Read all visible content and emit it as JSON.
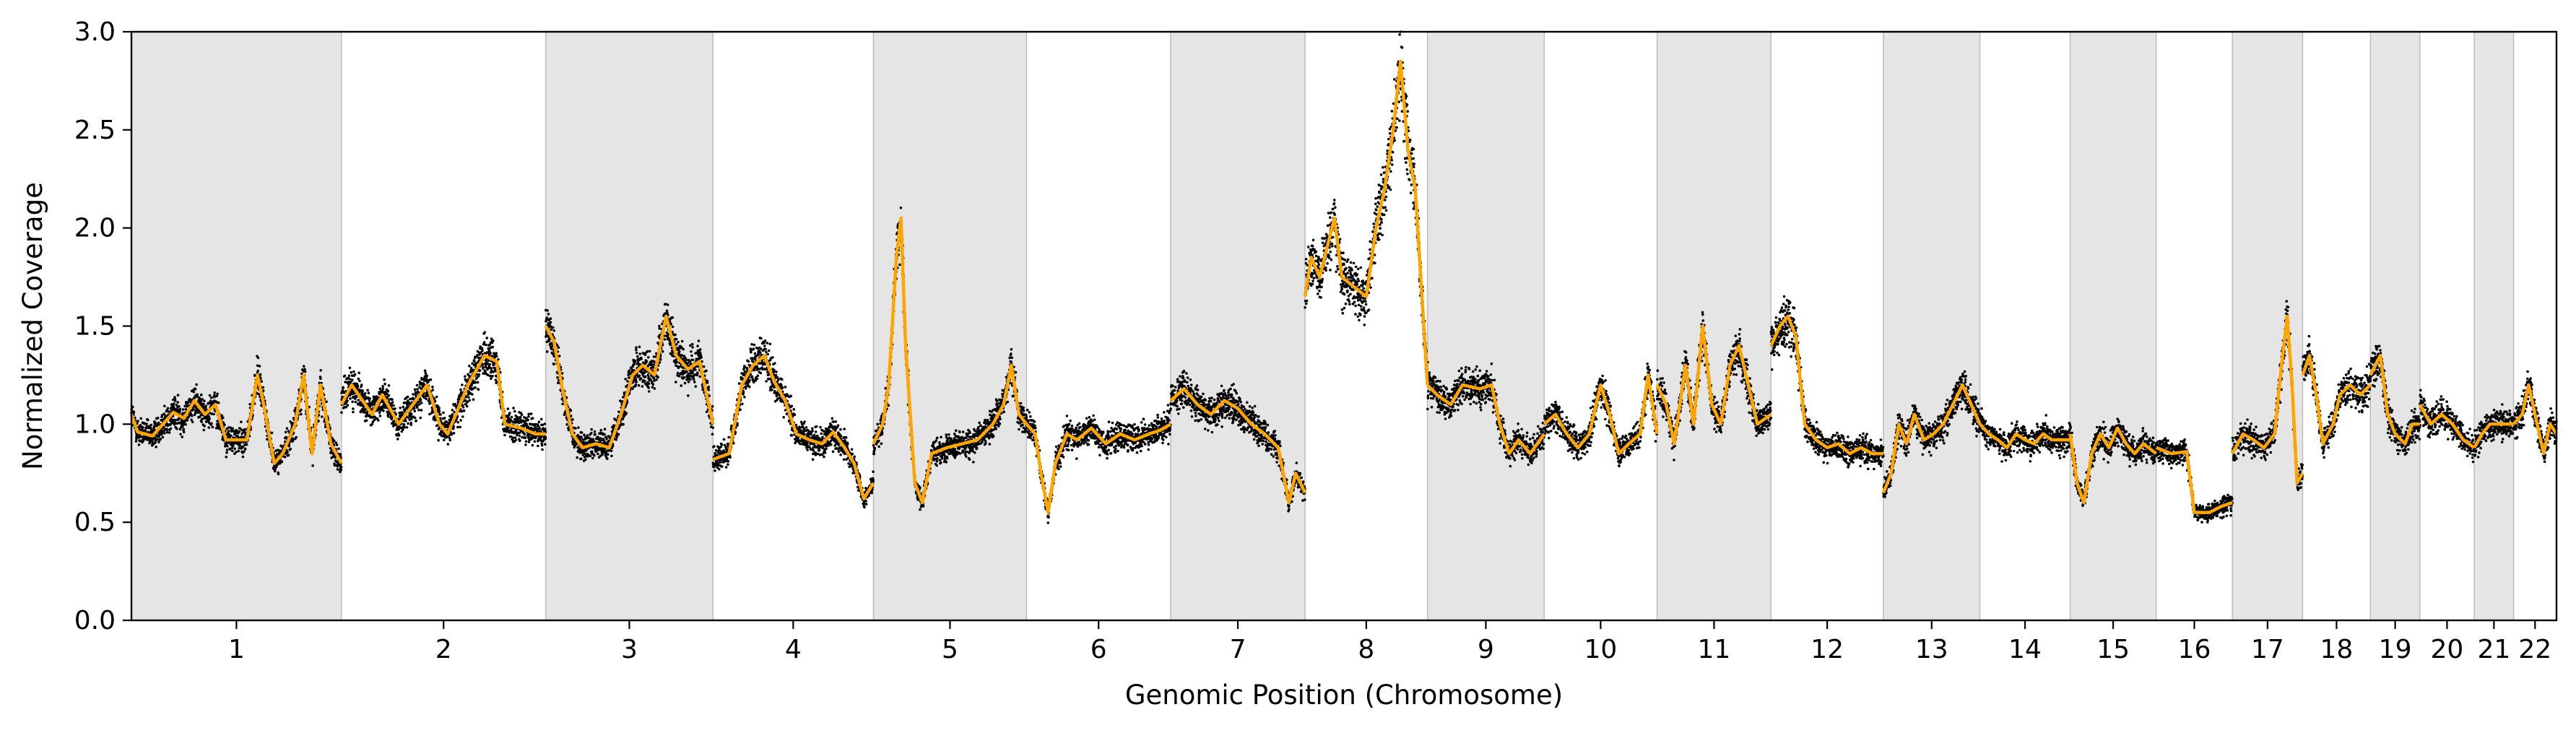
{
  "chart_data": {
    "type": "scatter",
    "title": "",
    "xlabel": "Genomic Position (Chromosome)",
    "ylabel": "Normalized Coverage",
    "ylim": [
      0.0,
      3.0
    ],
    "yticks": [
      "0.0",
      "0.5",
      "1.0",
      "1.5",
      "2.0",
      "2.5",
      "3.0"
    ],
    "grid": false,
    "legend": "none",
    "colors": {
      "points": "#000000",
      "segments": "#FFA500",
      "band": "#E5E5E5",
      "band_edge": "#BDBDBD"
    },
    "chromosomes": [
      {
        "label": "1",
        "length": 248.956,
        "shaded": true
      },
      {
        "label": "2",
        "length": 242.193,
        "shaded": false
      },
      {
        "label": "3",
        "length": 198.295,
        "shaded": true
      },
      {
        "label": "4",
        "length": 190.214,
        "shaded": false
      },
      {
        "label": "5",
        "length": 181.538,
        "shaded": true
      },
      {
        "label": "6",
        "length": 170.805,
        "shaded": false
      },
      {
        "label": "7",
        "length": 159.345,
        "shaded": true
      },
      {
        "label": "8",
        "length": 145.138,
        "shaded": false
      },
      {
        "label": "9",
        "length": 138.394,
        "shaded": true
      },
      {
        "label": "10",
        "length": 133.797,
        "shaded": false
      },
      {
        "label": "11",
        "length": 135.086,
        "shaded": true
      },
      {
        "label": "12",
        "length": 133.275,
        "shaded": false
      },
      {
        "label": "13",
        "length": 114.364,
        "shaded": true
      },
      {
        "label": "14",
        "length": 107.043,
        "shaded": false
      },
      {
        "label": "15",
        "length": 101.991,
        "shaded": true
      },
      {
        "label": "16",
        "length": 90.338,
        "shaded": false
      },
      {
        "label": "17",
        "length": 83.257,
        "shaded": true
      },
      {
        "label": "18",
        "length": 80.373,
        "shaded": false
      },
      {
        "label": "19",
        "length": 58.617,
        "shaded": true
      },
      {
        "label": "20",
        "length": 64.444,
        "shaded": false
      },
      {
        "label": "21",
        "length": 46.71,
        "shaded": true
      },
      {
        "label": "22",
        "length": 50.818,
        "shaded": false
      }
    ],
    "segments": [
      {
        "chrom": "1",
        "profile": [
          [
            0.0,
            1.05
          ],
          [
            0.03,
            0.96
          ],
          [
            0.1,
            0.94
          ],
          [
            0.15,
            1.0
          ],
          [
            0.2,
            1.06
          ],
          [
            0.25,
            1.03
          ],
          [
            0.3,
            1.12
          ],
          [
            0.35,
            1.05
          ],
          [
            0.4,
            1.1
          ],
          [
            0.45,
            0.92
          ],
          [
            0.55,
            0.92
          ],
          [
            0.6,
            1.25
          ],
          [
            0.63,
            1.1
          ],
          [
            0.68,
            0.8
          ],
          [
            0.72,
            0.85
          ],
          [
            0.78,
            1.0
          ],
          [
            0.82,
            1.25
          ],
          [
            0.86,
            0.85
          ],
          [
            0.9,
            1.2
          ],
          [
            0.95,
            0.9
          ],
          [
            1.0,
            0.8
          ]
        ]
      },
      {
        "chrom": "2",
        "profile": [
          [
            0.0,
            1.1
          ],
          [
            0.05,
            1.2
          ],
          [
            0.15,
            1.05
          ],
          [
            0.2,
            1.15
          ],
          [
            0.28,
            1.0
          ],
          [
            0.35,
            1.1
          ],
          [
            0.42,
            1.2
          ],
          [
            0.48,
            1.0
          ],
          [
            0.52,
            0.95
          ],
          [
            0.58,
            1.1
          ],
          [
            0.62,
            1.2
          ],
          [
            0.7,
            1.35
          ],
          [
            0.76,
            1.32
          ],
          [
            0.8,
            1.0
          ],
          [
            0.88,
            0.98
          ],
          [
            0.95,
            0.95
          ],
          [
            1.0,
            0.95
          ]
        ]
      },
      {
        "chrom": "3",
        "profile": [
          [
            0.0,
            1.5
          ],
          [
            0.05,
            1.42
          ],
          [
            0.1,
            1.18
          ],
          [
            0.16,
            0.95
          ],
          [
            0.22,
            0.88
          ],
          [
            0.3,
            0.9
          ],
          [
            0.38,
            0.88
          ],
          [
            0.45,
            1.05
          ],
          [
            0.52,
            1.25
          ],
          [
            0.58,
            1.3
          ],
          [
            0.65,
            1.25
          ],
          [
            0.72,
            1.55
          ],
          [
            0.78,
            1.35
          ],
          [
            0.85,
            1.28
          ],
          [
            0.92,
            1.32
          ],
          [
            1.0,
            1.0
          ]
        ]
      },
      {
        "chrom": "4",
        "profile": [
          [
            0.0,
            0.82
          ],
          [
            0.1,
            0.85
          ],
          [
            0.18,
            1.2
          ],
          [
            0.25,
            1.3
          ],
          [
            0.32,
            1.35
          ],
          [
            0.38,
            1.22
          ],
          [
            0.45,
            1.12
          ],
          [
            0.52,
            0.95
          ],
          [
            0.6,
            0.92
          ],
          [
            0.68,
            0.9
          ],
          [
            0.75,
            0.96
          ],
          [
            0.82,
            0.88
          ],
          [
            0.88,
            0.8
          ],
          [
            0.94,
            0.62
          ],
          [
            1.0,
            0.7
          ]
        ]
      },
      {
        "chrom": "5",
        "profile": [
          [
            0.0,
            0.9
          ],
          [
            0.06,
            1.0
          ],
          [
            0.1,
            1.2
          ],
          [
            0.15,
            1.85
          ],
          [
            0.18,
            2.05
          ],
          [
            0.21,
            1.4
          ],
          [
            0.27,
            0.7
          ],
          [
            0.32,
            0.6
          ],
          [
            0.38,
            0.85
          ],
          [
            0.48,
            0.88
          ],
          [
            0.58,
            0.9
          ],
          [
            0.68,
            0.92
          ],
          [
            0.78,
            1.0
          ],
          [
            0.85,
            1.1
          ],
          [
            0.9,
            1.3
          ],
          [
            0.95,
            1.05
          ],
          [
            1.0,
            1.0
          ]
        ]
      },
      {
        "chrom": "6",
        "profile": [
          [
            0.0,
            1.0
          ],
          [
            0.06,
            0.95
          ],
          [
            0.1,
            0.75
          ],
          [
            0.15,
            0.55
          ],
          [
            0.2,
            0.8
          ],
          [
            0.28,
            0.95
          ],
          [
            0.35,
            0.92
          ],
          [
            0.45,
            0.98
          ],
          [
            0.55,
            0.9
          ],
          [
            0.65,
            0.95
          ],
          [
            0.75,
            0.92
          ],
          [
            0.85,
            0.95
          ],
          [
            0.93,
            0.97
          ],
          [
            1.0,
            1.0
          ]
        ]
      },
      {
        "chrom": "7",
        "profile": [
          [
            0.0,
            1.12
          ],
          [
            0.1,
            1.18
          ],
          [
            0.2,
            1.1
          ],
          [
            0.3,
            1.05
          ],
          [
            0.4,
            1.12
          ],
          [
            0.5,
            1.08
          ],
          [
            0.6,
            1.0
          ],
          [
            0.7,
            0.95
          ],
          [
            0.8,
            0.88
          ],
          [
            0.88,
            0.6
          ],
          [
            0.93,
            0.75
          ],
          [
            1.0,
            0.65
          ]
        ]
      },
      {
        "chrom": "8",
        "profile": [
          [
            0.0,
            1.65
          ],
          [
            0.05,
            1.85
          ],
          [
            0.12,
            1.75
          ],
          [
            0.18,
            1.9
          ],
          [
            0.24,
            2.05
          ],
          [
            0.3,
            1.75
          ],
          [
            0.4,
            1.7
          ],
          [
            0.5,
            1.65
          ],
          [
            0.58,
            2.0
          ],
          [
            0.65,
            2.2
          ],
          [
            0.72,
            2.5
          ],
          [
            0.78,
            2.85
          ],
          [
            0.84,
            2.4
          ],
          [
            0.9,
            2.2
          ],
          [
            1.0,
            1.2
          ]
        ]
      },
      {
        "chrom": "9",
        "profile": [
          [
            0.0,
            1.2
          ],
          [
            0.08,
            1.15
          ],
          [
            0.2,
            1.1
          ],
          [
            0.3,
            1.2
          ],
          [
            0.45,
            1.18
          ],
          [
            0.55,
            1.2
          ],
          [
            0.62,
            1.0
          ],
          [
            0.7,
            0.85
          ],
          [
            0.78,
            0.92
          ],
          [
            0.88,
            0.85
          ],
          [
            1.0,
            0.95
          ]
        ]
      },
      {
        "chrom": "10",
        "profile": [
          [
            0.0,
            1.0
          ],
          [
            0.1,
            1.05
          ],
          [
            0.2,
            0.95
          ],
          [
            0.3,
            0.88
          ],
          [
            0.4,
            0.95
          ],
          [
            0.5,
            1.2
          ],
          [
            0.58,
            1.05
          ],
          [
            0.66,
            0.85
          ],
          [
            0.75,
            0.9
          ],
          [
            0.85,
            0.95
          ],
          [
            0.92,
            1.25
          ],
          [
            1.0,
            0.95
          ]
        ]
      },
      {
        "chrom": "11",
        "profile": [
          [
            0.0,
            1.2
          ],
          [
            0.08,
            1.1
          ],
          [
            0.15,
            0.9
          ],
          [
            0.25,
            1.3
          ],
          [
            0.32,
            1.0
          ],
          [
            0.4,
            1.5
          ],
          [
            0.48,
            1.1
          ],
          [
            0.56,
            1.0
          ],
          [
            0.64,
            1.3
          ],
          [
            0.72,
            1.4
          ],
          [
            0.8,
            1.2
          ],
          [
            0.88,
            1.0
          ],
          [
            1.0,
            1.05
          ]
        ]
      },
      {
        "chrom": "12",
        "profile": [
          [
            0.0,
            1.4
          ],
          [
            0.08,
            1.5
          ],
          [
            0.15,
            1.55
          ],
          [
            0.22,
            1.45
          ],
          [
            0.3,
            1.0
          ],
          [
            0.4,
            0.92
          ],
          [
            0.5,
            0.88
          ],
          [
            0.6,
            0.9
          ],
          [
            0.7,
            0.85
          ],
          [
            0.8,
            0.88
          ],
          [
            0.9,
            0.85
          ],
          [
            1.0,
            0.85
          ]
        ]
      },
      {
        "chrom": "13",
        "profile": [
          [
            0.0,
            0.65
          ],
          [
            0.08,
            0.75
          ],
          [
            0.16,
            1.0
          ],
          [
            0.24,
            0.9
          ],
          [
            0.32,
            1.05
          ],
          [
            0.42,
            0.92
          ],
          [
            0.52,
            0.95
          ],
          [
            0.62,
            1.0
          ],
          [
            0.72,
            1.1
          ],
          [
            0.82,
            1.2
          ],
          [
            1.0,
            1.0
          ]
        ]
      },
      {
        "chrom": "14",
        "profile": [
          [
            0.0,
            1.0
          ],
          [
            0.1,
            0.95
          ],
          [
            0.2,
            0.92
          ],
          [
            0.3,
            0.88
          ],
          [
            0.4,
            0.95
          ],
          [
            0.5,
            0.92
          ],
          [
            0.6,
            0.9
          ],
          [
            0.7,
            0.95
          ],
          [
            0.8,
            0.92
          ],
          [
            1.0,
            0.92
          ]
        ]
      },
      {
        "chrom": "15",
        "profile": [
          [
            0.0,
            0.95
          ],
          [
            0.08,
            0.7
          ],
          [
            0.16,
            0.6
          ],
          [
            0.25,
            0.85
          ],
          [
            0.35,
            0.95
          ],
          [
            0.45,
            0.88
          ],
          [
            0.55,
            0.98
          ],
          [
            0.65,
            0.9
          ],
          [
            0.75,
            0.85
          ],
          [
            0.85,
            0.9
          ],
          [
            1.0,
            0.85
          ]
        ]
      },
      {
        "chrom": "16",
        "profile": [
          [
            0.0,
            0.88
          ],
          [
            0.2,
            0.85
          ],
          [
            0.4,
            0.86
          ],
          [
            0.5,
            0.55
          ],
          [
            0.7,
            0.55
          ],
          [
            0.85,
            0.58
          ],
          [
            1.0,
            0.6
          ]
        ]
      },
      {
        "chrom": "17",
        "profile": [
          [
            0.0,
            0.85
          ],
          [
            0.15,
            0.95
          ],
          [
            0.3,
            0.92
          ],
          [
            0.45,
            0.88
          ],
          [
            0.6,
            0.95
          ],
          [
            0.7,
            1.3
          ],
          [
            0.78,
            1.55
          ],
          [
            0.85,
            1.2
          ],
          [
            0.92,
            0.7
          ],
          [
            1.0,
            0.75
          ]
        ]
      },
      {
        "chrom": "18",
        "profile": [
          [
            0.0,
            1.25
          ],
          [
            0.1,
            1.35
          ],
          [
            0.2,
            1.15
          ],
          [
            0.3,
            0.9
          ],
          [
            0.45,
            1.0
          ],
          [
            0.55,
            1.15
          ],
          [
            0.7,
            1.2
          ],
          [
            0.85,
            1.15
          ],
          [
            1.0,
            1.2
          ]
        ]
      },
      {
        "chrom": "19",
        "profile": [
          [
            0.0,
            1.25
          ],
          [
            0.2,
            1.35
          ],
          [
            0.35,
            1.05
          ],
          [
            0.5,
            0.95
          ],
          [
            0.7,
            0.9
          ],
          [
            0.85,
            1.0
          ],
          [
            1.0,
            1.0
          ]
        ]
      },
      {
        "chrom": "20",
        "profile": [
          [
            0.0,
            1.1
          ],
          [
            0.2,
            1.0
          ],
          [
            0.4,
            1.05
          ],
          [
            0.6,
            1.0
          ],
          [
            0.8,
            0.92
          ],
          [
            1.0,
            0.88
          ]
        ]
      },
      {
        "chrom": "21",
        "profile": [
          [
            0.0,
            0.88
          ],
          [
            0.2,
            0.95
          ],
          [
            0.4,
            1.0
          ],
          [
            0.7,
            1.0
          ],
          [
            1.0,
            1.0
          ]
        ]
      },
      {
        "chrom": "22",
        "profile": [
          [
            0.0,
            1.0
          ],
          [
            0.2,
            1.05
          ],
          [
            0.35,
            1.2
          ],
          [
            0.5,
            1.05
          ],
          [
            0.7,
            0.85
          ],
          [
            0.85,
            1.0
          ],
          [
            1.0,
            0.95
          ]
        ]
      }
    ]
  }
}
